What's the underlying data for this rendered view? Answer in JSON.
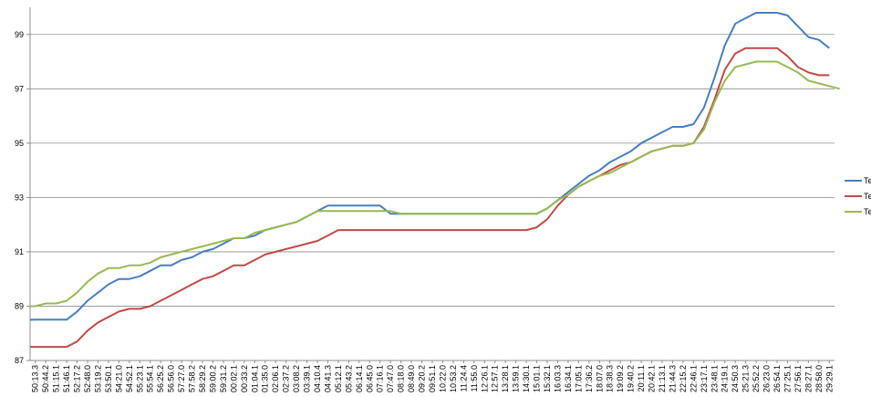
{
  "chart_data": {
    "type": "line",
    "title": "",
    "xlabel": "",
    "ylabel": "",
    "ylim": [
      87,
      100
    ],
    "yticks": [
      87,
      89,
      91,
      93,
      95,
      97,
      99
    ],
    "grid": true,
    "legend_position": "right",
    "x_tick_labels": [
      "50:13.3",
      "50:44.2",
      "51:15.1",
      "51:46.1",
      "52:17.2",
      "52:48.0",
      "53:19.2",
      "53:50.1",
      "54:21.0",
      "54:52.1",
      "55:23.1",
      "55:54.1",
      "56:25.2",
      "56:56.0",
      "57:27.0",
      "57:58.2",
      "58:29.2",
      "59:00.2",
      "59:31.2",
      "00:02.1",
      "00:33.2",
      "01:04.1",
      "01:35.0",
      "02:06.1",
      "02:37.2",
      "03:08.2",
      "03:39.1",
      "04:10.4",
      "04:41.3",
      "05:12.1",
      "05:43.2",
      "06:14.1",
      "06:45.0",
      "07:16.1",
      "07:47.0",
      "08:18.0",
      "08:49.0",
      "09:20.2",
      "09:51.1",
      "10:22.0",
      "10:53.2",
      "11:24.4",
      "11:55.0",
      "12:26.1",
      "12:57.1",
      "13:28.1",
      "13:59.1",
      "14:30.1",
      "15:01.1",
      "15:32.1",
      "16:03.3",
      "16:34.1",
      "17:05.1",
      "17:36.2",
      "18:07.0",
      "18:38.3",
      "19:09.2",
      "19:40.2",
      "20:11.1",
      "20:42.1",
      "21:13.1",
      "21:44.3",
      "22:15.2",
      "22:46.1",
      "23:17.1",
      "23:48.1",
      "24:19.1",
      "24:50.3",
      "25:21.3",
      "25:52.2",
      "26:23.0",
      "26:54.1",
      "27:25.1",
      "27:56.1",
      "28:27.1",
      "28:58.0",
      "29:29.1"
    ],
    "series": [
      {
        "name": "Te",
        "color": "#4a7ebb",
        "values": [
          88.5,
          88.5,
          88.5,
          88.5,
          88.8,
          89.2,
          89.5,
          89.8,
          90.0,
          90.0,
          90.1,
          90.3,
          90.5,
          90.5,
          90.7,
          90.8,
          91.0,
          91.1,
          91.3,
          91.5,
          91.5,
          91.6,
          91.8,
          91.9,
          92.0,
          92.1,
          92.3,
          92.5,
          92.7,
          92.7,
          92.7,
          92.7,
          92.7,
          92.7,
          92.4,
          92.4,
          92.4,
          92.4,
          92.4,
          92.4,
          92.4,
          92.4,
          92.4,
          92.4,
          92.4,
          92.4,
          92.4,
          92.4,
          92.4,
          92.6,
          92.9,
          93.2,
          93.5,
          93.8,
          94.0,
          94.3,
          94.5,
          94.7,
          95.0,
          95.2,
          95.4,
          95.6,
          95.6,
          95.7,
          96.3,
          97.4,
          98.6,
          99.4,
          99.6,
          99.8,
          99.8,
          99.8,
          99.7,
          99.3,
          98.9,
          98.8,
          98.5
        ]
      },
      {
        "name": "Te",
        "color": "#be4b48",
        "values": [
          87.5,
          87.5,
          87.5,
          87.5,
          87.7,
          88.1,
          88.4,
          88.6,
          88.8,
          88.9,
          88.9,
          89.0,
          89.2,
          89.4,
          89.6,
          89.8,
          90.0,
          90.1,
          90.3,
          90.5,
          90.5,
          90.7,
          90.9,
          91.0,
          91.1,
          91.2,
          91.3,
          91.4,
          91.6,
          91.8,
          91.8,
          91.8,
          91.8,
          91.8,
          91.8,
          91.8,
          91.8,
          91.8,
          91.8,
          91.8,
          91.8,
          91.8,
          91.8,
          91.8,
          91.8,
          91.8,
          91.8,
          91.8,
          91.9,
          92.2,
          92.7,
          93.1,
          93.4,
          93.6,
          93.8,
          94.0,
          94.2,
          94.3,
          94.5,
          94.7,
          94.8,
          94.9,
          94.9,
          95.0,
          95.6,
          96.6,
          97.7,
          98.3,
          98.5,
          98.5,
          98.5,
          98.5,
          98.2,
          97.8,
          97.6,
          97.5,
          97.5
        ]
      },
      {
        "name": "Te",
        "color": "#98b954",
        "values": [
          89.0,
          89.1,
          89.1,
          89.2,
          89.5,
          89.9,
          90.2,
          90.4,
          90.4,
          90.5,
          90.5,
          90.6,
          90.8,
          90.9,
          91.0,
          91.1,
          91.2,
          91.3,
          91.4,
          91.5,
          91.5,
          91.7,
          91.8,
          91.9,
          92.0,
          92.1,
          92.3,
          92.5,
          92.5,
          92.5,
          92.5,
          92.5,
          92.5,
          92.5,
          92.5,
          92.4,
          92.4,
          92.4,
          92.4,
          92.4,
          92.4,
          92.4,
          92.4,
          92.4,
          92.4,
          92.4,
          92.4,
          92.4,
          92.4,
          92.6,
          92.9,
          93.1,
          93.4,
          93.6,
          93.8,
          93.9,
          94.1,
          94.3,
          94.5,
          94.7,
          94.8,
          94.9,
          94.9,
          95.0,
          95.5,
          96.5,
          97.3,
          97.8,
          97.9,
          98.0,
          98.0,
          98.0,
          97.8,
          97.6,
          97.3,
          97.2,
          97.1,
          97.0
        ]
      }
    ]
  }
}
